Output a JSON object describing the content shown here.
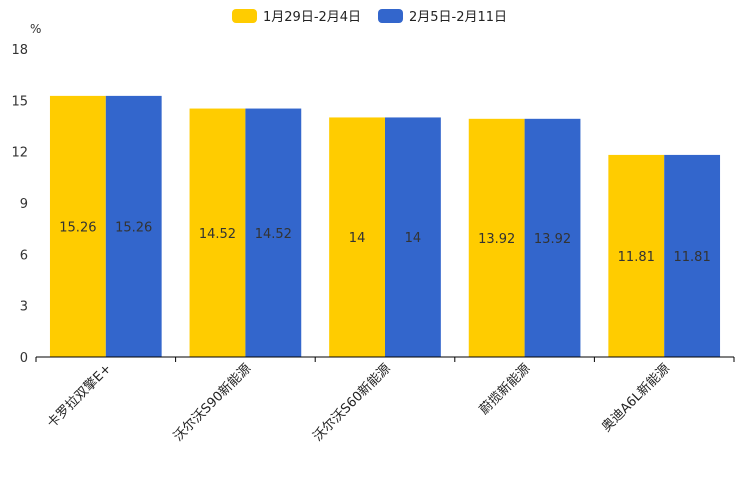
{
  "chart_data": {
    "type": "bar",
    "title": "",
    "xlabel": "",
    "ylabel": "%",
    "ylim": [
      0,
      18
    ],
    "yticks": [
      0,
      3,
      6,
      9,
      12,
      15,
      18
    ],
    "categories": [
      "卡罗拉双擎E+",
      "沃尔沃S90新能源",
      "沃尔沃S60新能源",
      "蔚揽新能源",
      "奥迪A6L新能源"
    ],
    "series": [
      {
        "name": "1月29日-2月4日",
        "color": "#ffcc00",
        "values": [
          15.26,
          14.52,
          14,
          13.92,
          11.81
        ],
        "labels": [
          "15.26",
          "14.52",
          "14",
          "13.92",
          "11.81"
        ]
      },
      {
        "name": "2月5日-2月11日",
        "color": "#3366cc",
        "values": [
          15.26,
          14.52,
          14,
          13.92,
          11.81
        ],
        "labels": [
          "15.26",
          "14.52",
          "14",
          "13.92",
          "11.81"
        ]
      }
    ],
    "legend": "top-center",
    "grid": false
  }
}
